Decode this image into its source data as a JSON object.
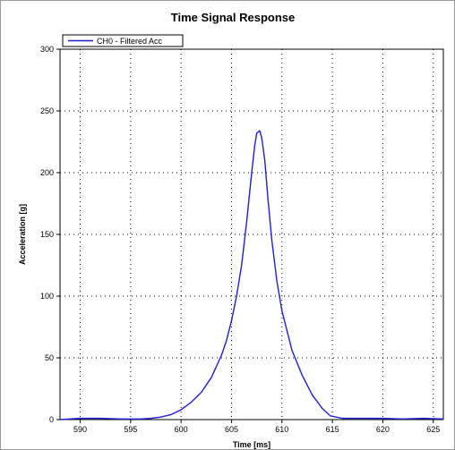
{
  "chart_data": {
    "type": "line",
    "title": "Time Signal Response",
    "xlabel": "Time [ms]",
    "ylabel": "Acceleration [g]",
    "xlim": [
      588,
      626
    ],
    "ylim": [
      0,
      300
    ],
    "x_ticks": [
      590,
      595,
      600,
      605,
      610,
      615,
      620,
      625
    ],
    "y_ticks": [
      0,
      50,
      100,
      150,
      200,
      250,
      300
    ],
    "grid": true,
    "grid_style": "dotted",
    "legend_position": "top-left",
    "series": [
      {
        "name": "CH0 - Filtered Acc",
        "color": "#1f1fd6",
        "x": [
          588,
          590,
          592,
          594,
          596,
          597,
          598,
          599,
          600,
          601,
          602,
          603,
          604,
          604.5,
          605,
          605.5,
          606,
          606.5,
          607,
          607.3,
          607.5,
          607.8,
          608,
          608.3,
          608.6,
          609,
          609.5,
          610,
          611,
          612,
          613,
          614,
          614.8,
          616,
          618,
          620,
          622,
          624,
          626
        ],
        "y": [
          0,
          1,
          1,
          0.5,
          0.5,
          1,
          2,
          4,
          8,
          14,
          22,
          34,
          52,
          64,
          80,
          100,
          125,
          160,
          200,
          222,
          232,
          234,
          228,
          210,
          180,
          145,
          112,
          88,
          56,
          36,
          20,
          9,
          3,
          1,
          1,
          1,
          0.5,
          1,
          0.5
        ]
      }
    ]
  }
}
